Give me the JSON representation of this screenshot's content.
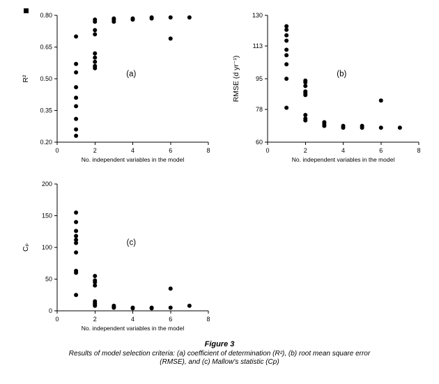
{
  "page": {
    "background": "#ffffff"
  },
  "caption": {
    "title": "Figure 3",
    "lines": [
      "Results of model selection criteria: (a) coefficient of determination (R²), (b) root mean square error",
      "(RMSE), and (c) Mallow's statistic (Cp)"
    ]
  },
  "chart_data": [
    {
      "type": "scatter",
      "panel_label": "(a)",
      "xlabel": "No. independent variables in the model",
      "ylabel": "R²",
      "xlim": [
        0,
        8
      ],
      "ylim": [
        0.2,
        0.8
      ],
      "xticks": [
        0,
        2,
        4,
        6,
        8
      ],
      "xtick_labels": [
        "0",
        "2",
        "4",
        "6",
        "8"
      ],
      "yticks": [
        0.2,
        0.35,
        0.5,
        0.65,
        0.8
      ],
      "ytick_labels": [
        "0.20",
        "0.35",
        "0.50",
        "0.65",
        "0.80"
      ],
      "marker_color": "#000000",
      "legend": false,
      "grid": false,
      "points": [
        [
          1,
          0.7
        ],
        [
          1,
          0.57
        ],
        [
          1,
          0.53
        ],
        [
          1,
          0.46
        ],
        [
          1,
          0.41
        ],
        [
          1,
          0.37
        ],
        [
          1,
          0.31
        ],
        [
          1,
          0.26
        ],
        [
          1,
          0.23
        ],
        [
          2,
          0.78
        ],
        [
          2,
          0.77
        ],
        [
          2,
          0.73
        ],
        [
          2,
          0.71
        ],
        [
          2,
          0.62
        ],
        [
          2,
          0.6
        ],
        [
          2,
          0.58
        ],
        [
          2,
          0.56
        ],
        [
          2,
          0.55
        ],
        [
          3,
          0.785
        ],
        [
          3,
          0.78
        ],
        [
          3,
          0.77
        ],
        [
          4,
          0.785
        ],
        [
          4,
          0.78
        ],
        [
          5,
          0.79
        ],
        [
          5,
          0.785
        ],
        [
          6,
          0.79
        ],
        [
          6,
          0.69
        ],
        [
          7,
          0.79
        ]
      ]
    },
    {
      "type": "scatter",
      "panel_label": "(b)",
      "xlabel": "No. independent variables in the model",
      "ylabel": "RMSE (d yr⁻¹)",
      "xlim": [
        0,
        8
      ],
      "ylim": [
        60,
        130
      ],
      "xticks": [
        0,
        2,
        4,
        6,
        8
      ],
      "xtick_labels": [
        "0",
        "2",
        "4",
        "6",
        "8"
      ],
      "yticks": [
        60,
        78,
        95,
        113,
        130
      ],
      "ytick_labels": [
        "60",
        "78",
        "95",
        "113",
        "130"
      ],
      "marker_color": "#000000",
      "legend": false,
      "grid": false,
      "points": [
        [
          1,
          124
        ],
        [
          1,
          122
        ],
        [
          1,
          119
        ],
        [
          1,
          116
        ],
        [
          1,
          111
        ],
        [
          1,
          108
        ],
        [
          1,
          103
        ],
        [
          1,
          95
        ],
        [
          1,
          79
        ],
        [
          2,
          94
        ],
        [
          2,
          93
        ],
        [
          2,
          91
        ],
        [
          2,
          88
        ],
        [
          2,
          87
        ],
        [
          2,
          86
        ],
        [
          2,
          75
        ],
        [
          2,
          73
        ],
        [
          2,
          72
        ],
        [
          3,
          71
        ],
        [
          3,
          70
        ],
        [
          3,
          69
        ],
        [
          4,
          69
        ],
        [
          4,
          68
        ],
        [
          5,
          69
        ],
        [
          5,
          68
        ],
        [
          6,
          83
        ],
        [
          6,
          68
        ],
        [
          7,
          68
        ]
      ]
    },
    {
      "type": "scatter",
      "panel_label": "(c)",
      "xlabel": "No. independent variables in the model",
      "ylabel": "Cₚ",
      "xlim": [
        0,
        8
      ],
      "ylim": [
        0,
        200
      ],
      "xticks": [
        0,
        2,
        4,
        6,
        8
      ],
      "xtick_labels": [
        "0",
        "2",
        "4",
        "6",
        "8"
      ],
      "yticks": [
        0,
        50,
        100,
        150,
        200
      ],
      "ytick_labels": [
        "0",
        "50",
        "100",
        "150",
        "200"
      ],
      "marker_color": "#000000",
      "legend": false,
      "grid": false,
      "points": [
        [
          1,
          155
        ],
        [
          1,
          140
        ],
        [
          1,
          126
        ],
        [
          1,
          118
        ],
        [
          1,
          112
        ],
        [
          1,
          107
        ],
        [
          1,
          92
        ],
        [
          1,
          63
        ],
        [
          1,
          60
        ],
        [
          1,
          25
        ],
        [
          2,
          55
        ],
        [
          2,
          48
        ],
        [
          2,
          45
        ],
        [
          2,
          40
        ],
        [
          2,
          15
        ],
        [
          2,
          12
        ],
        [
          2,
          10
        ],
        [
          2,
          8
        ],
        [
          3,
          8
        ],
        [
          3,
          6
        ],
        [
          3,
          5
        ],
        [
          4,
          5
        ],
        [
          4,
          4
        ],
        [
          5,
          5
        ],
        [
          5,
          4
        ],
        [
          6,
          35
        ],
        [
          6,
          5
        ],
        [
          7,
          8
        ]
      ]
    }
  ]
}
